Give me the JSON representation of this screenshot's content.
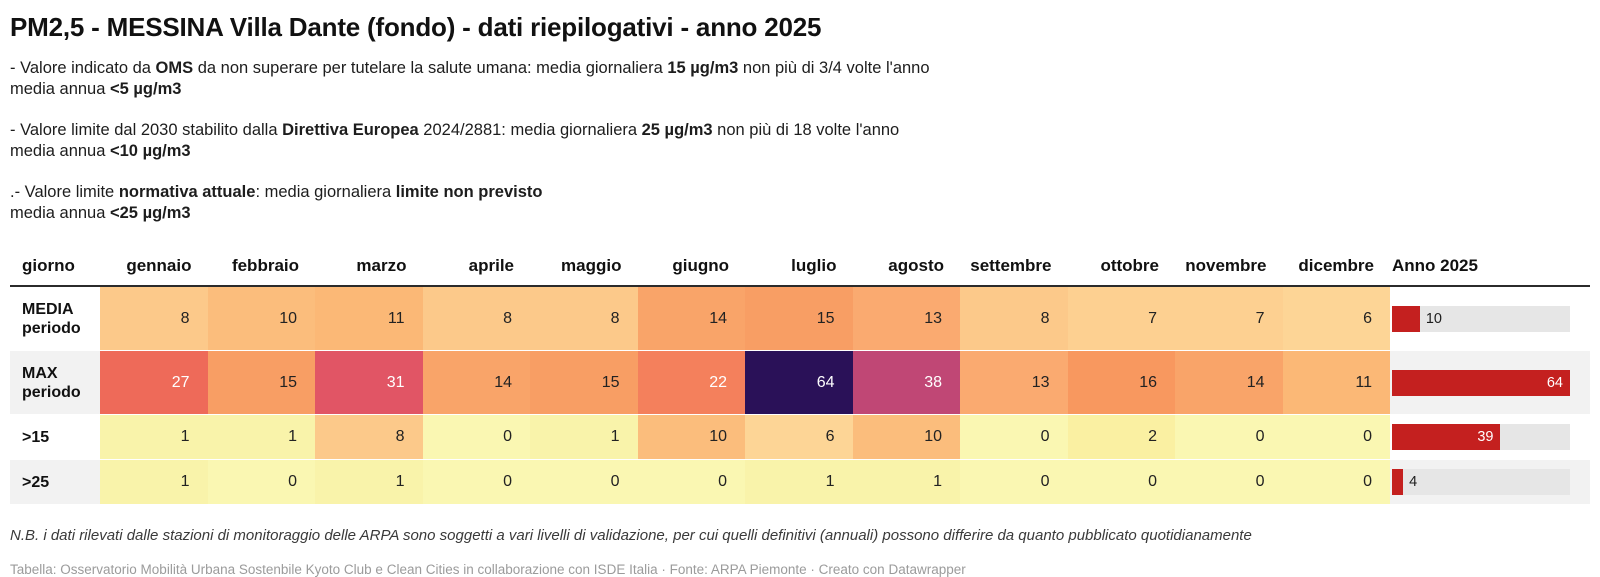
{
  "title": "PM2,5 - MESSINA Villa Dante (fondo) - dati riepilogativi - anno 2025",
  "notes": [
    {
      "s0": "- Valore indicato da ",
      "s1": "OMS",
      "s2": " da non superare per tutelare la salute umana: media giornaliera ",
      "s3": "15 µg/m3",
      "s4": " non più di 3/4 volte l'anno",
      "s5": "media annua ",
      "s6": "<5 µg/m3"
    },
    {
      "s0": "- Valore limite dal 2030 stabilito dalla ",
      "s1": "Direttiva Europea",
      "s2": " 2024/2881: media giornaliera ",
      "s3": "25 µg/m3",
      "s4": " non più di 18 volte l'anno",
      "s5": "media annua ",
      "s6": "<10 µg/m3"
    },
    {
      "s0": ".- Valore limite ",
      "s1": "normativa attuale",
      "s2": ": media giornaliera ",
      "s3": "limite non previsto",
      "s4": "",
      "s5": "media annua ",
      "s6": "<25 µg/m3"
    }
  ],
  "chart_data": {
    "type": "table",
    "title": "PM2,5 - MESSINA Villa Dante (fondo) - dati riepilogativi - anno 2025",
    "columns": [
      "giorno",
      "gennaio",
      "febbraio",
      "marzo",
      "aprile",
      "maggio",
      "giugno",
      "luglio",
      "agosto",
      "settembre",
      "ottobre",
      "novembre",
      "dicembre",
      "Anno 2025"
    ],
    "heatmap": true,
    "bar_max": 64,
    "bar_color": "#c4201f",
    "track_color": "#e6e6e6",
    "zebra_color": "#f2f2f2",
    "rows": [
      {
        "label": "MEDIA periodo",
        "values": [
          8,
          10,
          11,
          8,
          8,
          14,
          15,
          13,
          8,
          7,
          7,
          6
        ],
        "colors": [
          "#fcc98a",
          "#fbbd7c",
          "#fbb876",
          "#fcc98a",
          "#fcc98a",
          "#f9a469",
          "#f89e64",
          "#faaa70",
          "#fcc98a",
          "#fdd091",
          "#fdd091",
          "#fdd596"
        ],
        "light": [],
        "anno": 10
      },
      {
        "label": "MAX periodo",
        "values": [
          27,
          15,
          31,
          14,
          15,
          22,
          64,
          38,
          13,
          16,
          14,
          11
        ],
        "colors": [
          "#ee6a59",
          "#f89e64",
          "#e15565",
          "#f9a469",
          "#f89e64",
          "#f4805c",
          "#2a1158",
          "#c04775",
          "#faaa70",
          "#f8985f",
          "#f9a469",
          "#fbb876"
        ],
        "light": [
          0,
          2,
          5,
          6,
          7
        ],
        "anno": 64
      },
      {
        "label": ">15",
        "values": [
          1,
          1,
          8,
          0,
          1,
          10,
          6,
          10,
          0,
          2,
          0,
          0
        ],
        "colors": [
          "#f9f3aa",
          "#f9f3aa",
          "#fcc98a",
          "#faf7b2",
          "#f9f3aa",
          "#fbbd7c",
          "#fdd596",
          "#fbbd7c",
          "#faf7b2",
          "#faf0a2",
          "#faf7b2",
          "#faf7b2"
        ],
        "light": [],
        "anno": 39
      },
      {
        "label": ">25",
        "values": [
          1,
          0,
          1,
          0,
          0,
          0,
          1,
          1,
          0,
          0,
          0,
          0
        ],
        "colors": [
          "#f9f3aa",
          "#faf7b2",
          "#f9f3aa",
          "#faf7b2",
          "#faf7b2",
          "#faf7b2",
          "#f9f3aa",
          "#f9f3aa",
          "#faf7b2",
          "#faf7b2",
          "#faf7b2",
          "#faf7b2"
        ],
        "light": [],
        "anno": 4
      }
    ]
  },
  "footer": {
    "nb": "N.B. i dati rilevati dalle stazioni di monitoraggio delle ARPA sono soggetti a vari livelli di validazione, per cui quelli definitivi (annuali) possono differire da quanto pubblicato quotidianamente",
    "credits": "Tabella: Osservatorio Mobilità Urbana Sostenbile Kyoto Club e Clean Cities in collaborazione con ISDE Italia · Fonte: ARPA Piemonte · Creato con Datawrapper"
  }
}
